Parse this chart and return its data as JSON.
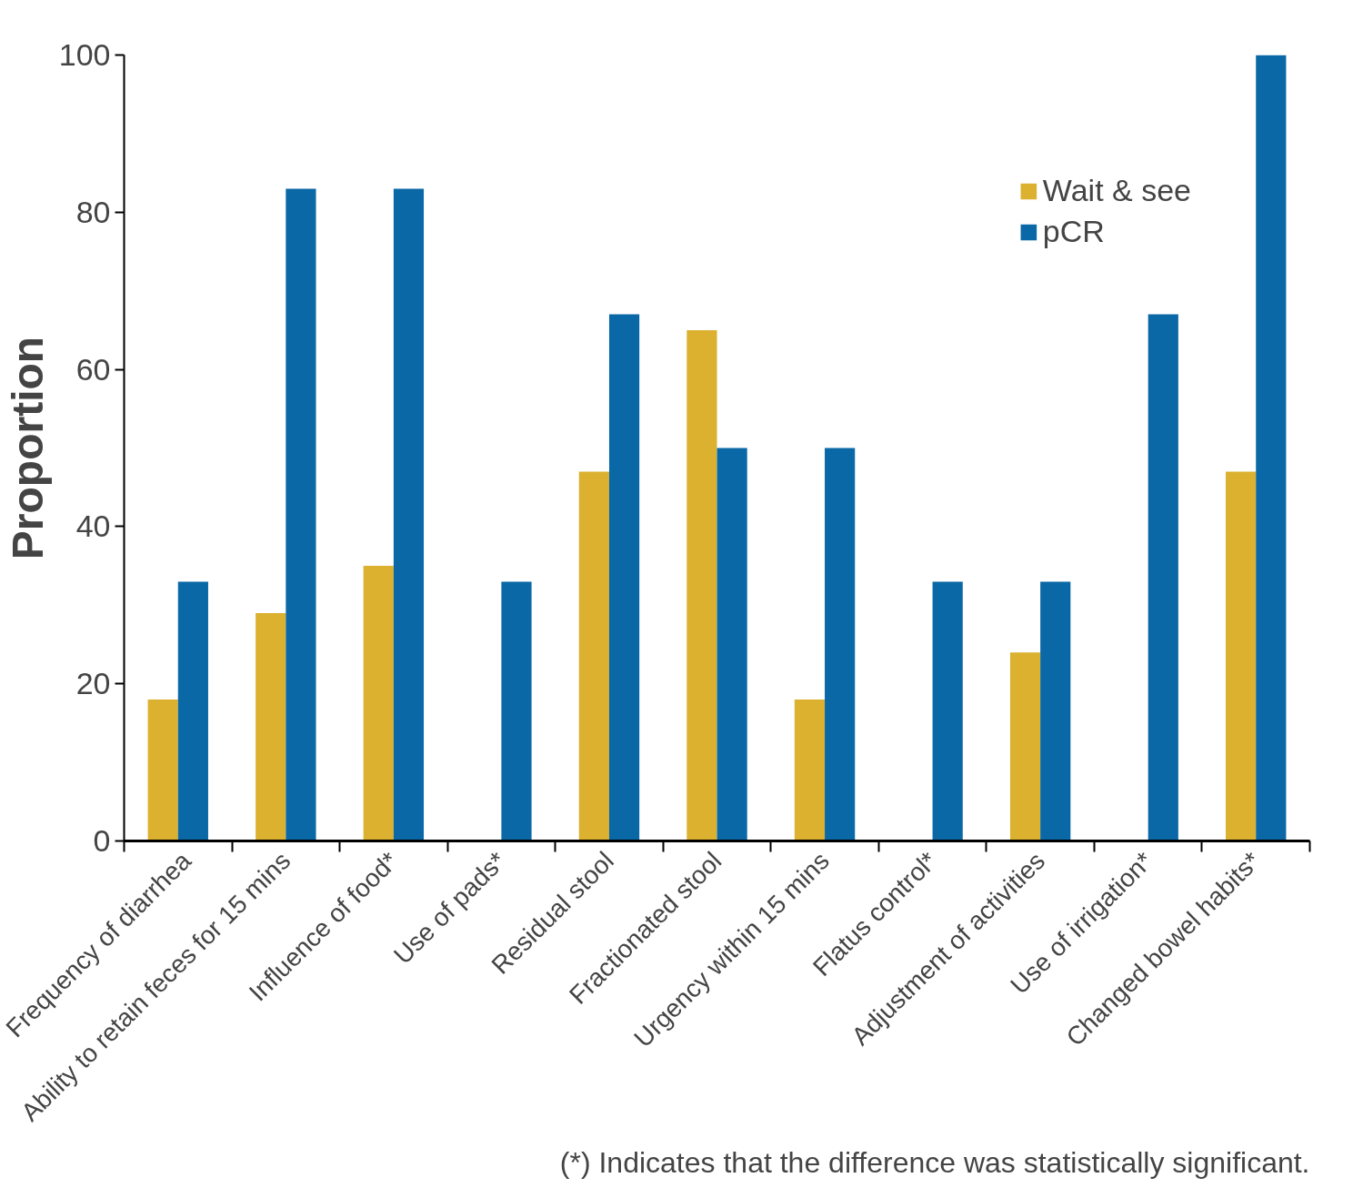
{
  "chart_data": {
    "type": "bar",
    "ylabel": "Proportion",
    "categories": [
      "Frequency of diarrhea",
      "Ability to retain feces for 15 mins",
      "Influence of food*",
      "Use of pads*",
      "Residual stool",
      "Fractionated stool",
      "Urgency within 15 mins",
      "Flatus control*",
      "Adjustment of activities",
      "Use of irrigation*",
      "Changed bowel habits*"
    ],
    "series": [
      {
        "name": "Wait & see",
        "color": "#dbb12f",
        "values": [
          18,
          29,
          35,
          0,
          47,
          65,
          18,
          0,
          24,
          0,
          47
        ]
      },
      {
        "name": "pCR",
        "color": "#0b68a6",
        "values": [
          33,
          83,
          83,
          33,
          67,
          50,
          50,
          33,
          33,
          67,
          100
        ]
      }
    ],
    "ylim": [
      0,
      100
    ],
    "yticks": [
      0,
      20,
      40,
      60,
      80,
      100
    ],
    "grid": false,
    "legend": "top right",
    "annotations": [
      "(*) Indicates that the difference was statistically significant."
    ]
  }
}
